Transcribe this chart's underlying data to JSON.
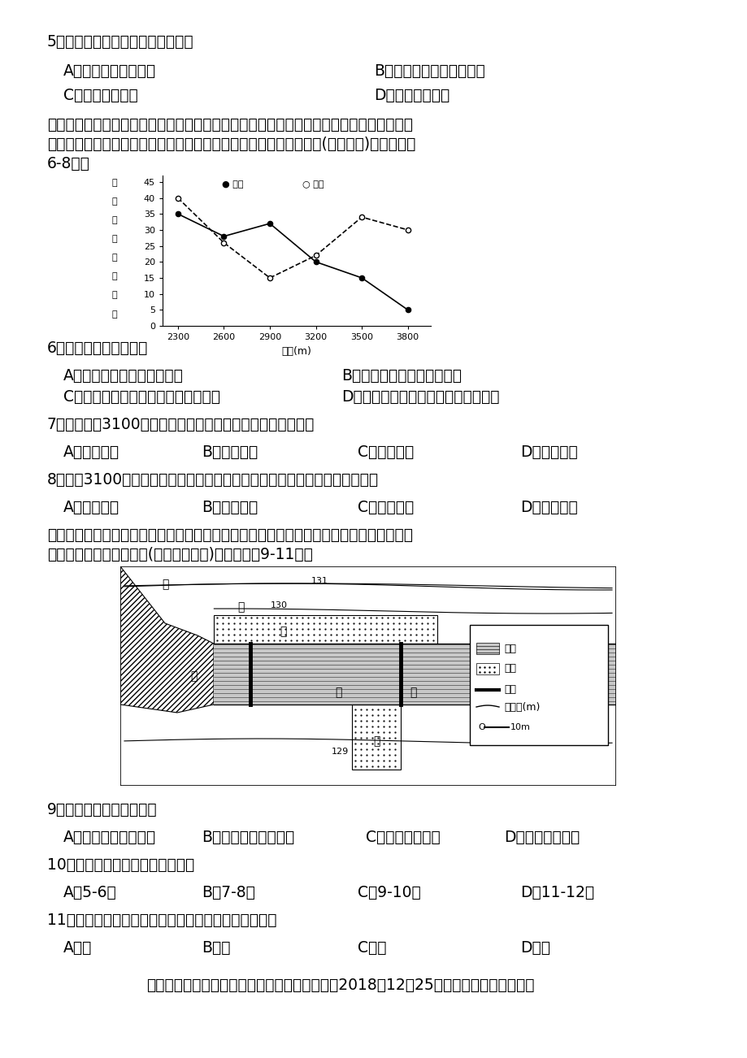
{
  "background": "#ffffff",
  "q5_text": "5．造成武汉旱灾严重的主要原因是",
  "q5_A": "A．春季气温快速上升",
  "q5_B": "B．夏季受副热带高压控制",
  "q5_C": "C．秋季晴朗少雨",
  "q5_D": "D．冬季寒冷干燥",
  "para1": "　　群落中物种数目的多少称为物种丰富度。高黎贡山北段位于云南省西北部，调查发现，",
  "para2": "该地木本植物和草本植物的物种丰富度随海拔上升表现出规律性变化(如图所示)。据此回答",
  "para3": "6-8题。",
  "graph1": {
    "x_vals": [
      2300,
      2600,
      2900,
      3200,
      3500,
      3800
    ],
    "wood_y": [
      35,
      28,
      32,
      20,
      15,
      5
    ],
    "grass_y": [
      40,
      26,
      15,
      22,
      34,
      30
    ],
    "xlabel": "海拔(m)",
    "ylabel_chars": [
      "物",
      "种",
      "丰",
      "富",
      "度",
      "（",
      "种",
      "）"
    ],
    "y_ticks": [
      0,
      5,
      10,
      15,
      20,
      25,
      30,
      35,
      40,
      45
    ]
  },
  "q6_text": "6．随着海拔上升，该地",
  "q6_A": "A．木本植物丰富度逐渐减少",
  "q6_B": "B．木本植物丰富度逐渐增多",
  "q6_C": "C．草本植物丰富度呈先减后增的趋势",
  "q6_D": "D．草本植物丰富度呈先增后减的趋势",
  "q7_text": "7．该地海拔3100米以下物种丰富度随海拔的变化主要取决于",
  "q7_A": "A．气温变化",
  "q7_B": "B．降水变化",
  "q7_C": "C．土壤变化",
  "q7_D": "D．坡度变化",
  "q8_text": "8．海拔3100米以上草本物种丰富度增多，主要原因是木本植物的变化改变了",
  "q8_A": "A．气温条件",
  "q8_B": "B．蒸发条件",
  "q8_C": "C．降水条件",
  "q8_D": "D．光照条件",
  "para4": "　　下图中的桃花河位于我国鄱阳湖平原地区，村民为了灌溉之便，开挖了两条水渠，并在",
  "para5": "河中修筑两条低矮的水坝(低于河水水面)。据此完成9-11题。",
  "q9_text": "9．图中水坝的主要作用是",
  "q9_A": "A．抬高水坝上游水位",
  "q9_B": "B．加快水坝下游流速",
  "q9_C": "C．减少水渠流量",
  "q9_D": "D．拦截上游泥沙",
  "q10_text": "10．图中水渠利用率最高的月份是",
  "q10_A": "A．5-6月",
  "q10_B": "B．7-8月",
  "q10_C": "C．9-10月",
  "q10_D": "D．11-12月",
  "q11_text": "11．图中甲、乙、丙、丁四处河岸泥沙淤积作用最强是",
  "q11_A": "A．甲",
  "q11_B": "B．乙",
  "q11_C": "C．丙",
  "q11_D": "D．丁",
  "footer": "　　中国人民银行授权中国外汇交易中心公布，2018年12月25日银行间外汇市场人民币"
}
